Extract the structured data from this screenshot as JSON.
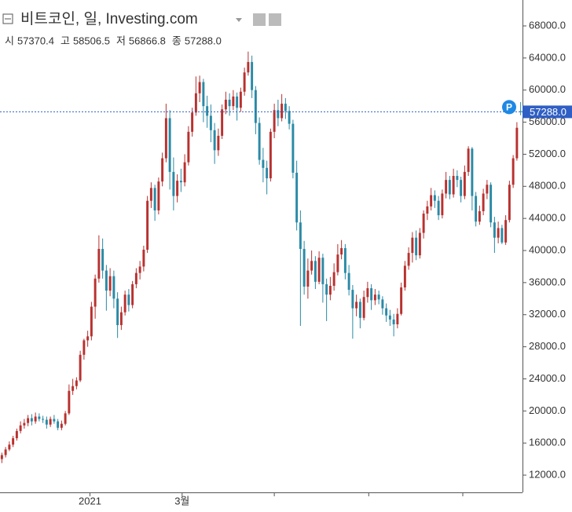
{
  "chart_data": {
    "type": "candlestick",
    "title": "비트코인, 일, Investing.com",
    "ohlc_names": [
      "시",
      "고",
      "저",
      "종"
    ],
    "last_labels": [
      "57370.4",
      "58506.5",
      "56866.8",
      "57288.0"
    ],
    "price_badge": "P",
    "up_color": "#b8312f",
    "down_color": "#2a8aa6",
    "price_line_color": "#2f5fc4",
    "ylim": [
      9850,
      71230
    ],
    "yticks": [
      {
        "value": 12000,
        "label": "12000.0"
      },
      {
        "value": 16000,
        "label": "16000.0"
      },
      {
        "value": 20000,
        "label": "20000.0"
      },
      {
        "value": 24000,
        "label": "24000.0"
      },
      {
        "value": 28000,
        "label": "28000.0"
      },
      {
        "value": 32000,
        "label": "32000.0"
      },
      {
        "value": 36000,
        "label": "36000.0"
      },
      {
        "value": 40000,
        "label": "40000.0"
      },
      {
        "value": 44000,
        "label": "44000.0"
      },
      {
        "value": 48000,
        "label": "48000.0"
      },
      {
        "value": 52000,
        "label": "52000.0"
      },
      {
        "value": 56000,
        "label": "56000.0"
      },
      {
        "value": 60000,
        "label": "60000.0"
      },
      {
        "value": 64000,
        "label": "64000.0"
      },
      {
        "value": 68000,
        "label": "68000.0"
      }
    ],
    "xlim": [
      -0.5,
      139.5
    ],
    "xticks": [
      {
        "value": 23.6,
        "label": "2021"
      },
      {
        "value": 48.3,
        "label": "3월"
      }
    ],
    "xminor_ticks": [
      73,
      98.3,
      123.5
    ],
    "ohlc": [
      [
        14000,
        14800,
        13500,
        14500
      ],
      [
        14500,
        15500,
        14200,
        15200
      ],
      [
        15200,
        16200,
        15000,
        15800
      ],
      [
        15800,
        16900,
        15500,
        16600
      ],
      [
        16600,
        17800,
        16300,
        17500
      ],
      [
        17500,
        18700,
        17200,
        18200
      ],
      [
        18200,
        19000,
        17800,
        18500
      ],
      [
        18500,
        19500,
        18100,
        19100
      ],
      [
        19100,
        19600,
        18200,
        18700
      ],
      [
        18700,
        19800,
        18400,
        19300
      ],
      [
        19300,
        19700,
        18700,
        19000
      ],
      [
        19000,
        19400,
        18500,
        18900
      ],
      [
        18900,
        19300,
        17800,
        18300
      ],
      [
        18300,
        19300,
        18000,
        19000
      ],
      [
        19000,
        19500,
        18400,
        18700
      ],
      [
        18700,
        19000,
        17600,
        17900
      ],
      [
        17900,
        18800,
        17600,
        18400
      ],
      [
        18400,
        20000,
        18200,
        19700
      ],
      [
        19700,
        23300,
        19500,
        22500
      ],
      [
        22500,
        24000,
        22000,
        23100
      ],
      [
        23100,
        24200,
        22700,
        23800
      ],
      [
        23800,
        27500,
        23600,
        27000
      ],
      [
        27000,
        29000,
        26400,
        28800
      ],
      [
        28800,
        30000,
        28000,
        29300
      ],
      [
        29300,
        33600,
        28800,
        33000
      ],
      [
        33000,
        37000,
        31500,
        36500
      ],
      [
        36500,
        41900,
        36000,
        40200
      ],
      [
        40200,
        41500,
        36500,
        37500
      ],
      [
        37500,
        38200,
        32500,
        35000
      ],
      [
        35000,
        37800,
        34300,
        36800
      ],
      [
        36800,
        37500,
        32800,
        34000
      ],
      [
        34000,
        34800,
        29100,
        30700
      ],
      [
        30700,
        33000,
        30100,
        32300
      ],
      [
        32300,
        35000,
        31900,
        34500
      ],
      [
        34500,
        35200,
        32400,
        33200
      ],
      [
        33200,
        36200,
        32800,
        35800
      ],
      [
        35800,
        37800,
        35300,
        37200
      ],
      [
        37200,
        38700,
        36400,
        38000
      ],
      [
        38000,
        40600,
        37400,
        40100
      ],
      [
        40100,
        46800,
        39700,
        46200
      ],
      [
        46200,
        48500,
        45300,
        47800
      ],
      [
        47800,
        48200,
        43700,
        45000
      ],
      [
        45000,
        49100,
        44500,
        48600
      ],
      [
        48600,
        52200,
        48000,
        51500
      ],
      [
        51500,
        58300,
        51000,
        56500
      ],
      [
        56500,
        57500,
        47600,
        49800
      ],
      [
        49800,
        51600,
        45000,
        46800
      ],
      [
        46800,
        49500,
        46000,
        48700
      ],
      [
        48700,
        50200,
        47300,
        48500
      ],
      [
        48500,
        52000,
        48000,
        51000
      ],
      [
        51000,
        55500,
        50600,
        54800
      ],
      [
        54800,
        57800,
        54200,
        57200
      ],
      [
        57200,
        61700,
        56800,
        59600
      ],
      [
        59600,
        61800,
        58500,
        61000
      ],
      [
        61000,
        61400,
        56000,
        58000
      ],
      [
        58000,
        59300,
        55300,
        56800
      ],
      [
        56800,
        58200,
        53500,
        55000
      ],
      [
        55000,
        55900,
        50800,
        52500
      ],
      [
        52500,
        55200,
        51800,
        54300
      ],
      [
        54300,
        58200,
        53900,
        57600
      ],
      [
        57600,
        59800,
        57000,
        58800
      ],
      [
        58800,
        59600,
        56800,
        58000
      ],
      [
        58000,
        60000,
        57500,
        59200
      ],
      [
        59200,
        59700,
        56200,
        57800
      ],
      [
        57800,
        60300,
        57300,
        59800
      ],
      [
        59800,
        62800,
        59300,
        62200
      ],
      [
        62200,
        64800,
        61800,
        63500
      ],
      [
        63500,
        64300,
        59000,
        60000
      ],
      [
        60000,
        60500,
        54500,
        55900
      ],
      [
        55900,
        56600,
        50700,
        51300
      ],
      [
        51300,
        52800,
        48500,
        50300
      ],
      [
        50300,
        51200,
        47000,
        49000
      ],
      [
        49000,
        55200,
        48600,
        54800
      ],
      [
        54800,
        58300,
        54000,
        57500
      ],
      [
        57500,
        58800,
        55500,
        56500
      ],
      [
        56500,
        59500,
        56100,
        58300
      ],
      [
        58300,
        59000,
        56400,
        57400
      ],
      [
        57400,
        58000,
        55100,
        55800
      ],
      [
        55800,
        56300,
        49000,
        49700
      ],
      [
        49700,
        51200,
        42500,
        43500
      ],
      [
        43500,
        45000,
        30600,
        40200
      ],
      [
        40200,
        41200,
        34500,
        35500
      ],
      [
        35500,
        39000,
        34000,
        37500
      ],
      [
        37500,
        40000,
        37000,
        38700
      ],
      [
        38700,
        39300,
        35200,
        36100
      ],
      [
        36100,
        39900,
        35800,
        39100
      ],
      [
        39100,
        39600,
        33500,
        35800
      ],
      [
        35800,
        36500,
        31200,
        34500
      ],
      [
        34500,
        36700,
        33800,
        35600
      ],
      [
        35600,
        38400,
        35000,
        37300
      ],
      [
        37300,
        40800,
        36900,
        39500
      ],
      [
        39500,
        41300,
        38900,
        40300
      ],
      [
        40300,
        40800,
        36400,
        37200
      ],
      [
        37200,
        38200,
        34400,
        35100
      ],
      [
        35100,
        35700,
        29000,
        32800
      ],
      [
        32800,
        34500,
        31800,
        33600
      ],
      [
        33600,
        34000,
        30300,
        31600
      ],
      [
        31600,
        35000,
        31300,
        34200
      ],
      [
        34200,
        36100,
        33500,
        35300
      ],
      [
        35300,
        35800,
        32600,
        33800
      ],
      [
        33800,
        35200,
        33200,
        34500
      ],
      [
        34500,
        35000,
        33300,
        33900
      ],
      [
        33900,
        34300,
        32000,
        32800
      ],
      [
        32800,
        33400,
        31100,
        31900
      ],
      [
        31900,
        32600,
        30600,
        31400
      ],
      [
        31400,
        32100,
        29300,
        30800
      ],
      [
        30800,
        32800,
        30300,
        32100
      ],
      [
        32100,
        36000,
        31900,
        35400
      ],
      [
        35400,
        38700,
        35000,
        38100
      ],
      [
        38100,
        40400,
        37600,
        39700
      ],
      [
        39700,
        42300,
        38500,
        41600
      ],
      [
        41600,
        42500,
        38800,
        39400
      ],
      [
        39400,
        42800,
        39000,
        42200
      ],
      [
        42200,
        45000,
        41500,
        44600
      ],
      [
        44600,
        46200,
        43800,
        45500
      ],
      [
        45500,
        47800,
        45000,
        46900
      ],
      [
        46900,
        47500,
        45300,
        46200
      ],
      [
        46200,
        46800,
        43800,
        44400
      ],
      [
        44400,
        47600,
        44000,
        47100
      ],
      [
        47100,
        49800,
        46500,
        48800
      ],
      [
        48800,
        49300,
        46400,
        47000
      ],
      [
        47000,
        50200,
        46600,
        49300
      ],
      [
        49300,
        50000,
        47900,
        48800
      ],
      [
        48800,
        49200,
        46000,
        46800
      ],
      [
        46800,
        50600,
        46400,
        49800
      ],
      [
        49800,
        53000,
        49300,
        52700
      ],
      [
        52700,
        52900,
        45000,
        46800
      ],
      [
        46800,
        47300,
        43000,
        43600
      ],
      [
        43600,
        45600,
        43200,
        44900
      ],
      [
        44900,
        47700,
        44400,
        47100
      ],
      [
        47100,
        48800,
        46400,
        48200
      ],
      [
        48200,
        48500,
        42900,
        43500
      ],
      [
        43500,
        44200,
        39700,
        41600
      ],
      [
        41600,
        43600,
        40900,
        42800
      ],
      [
        42800,
        43200,
        40800,
        41000
      ],
      [
        41000,
        44400,
        40700,
        43800
      ],
      [
        43800,
        48700,
        43500,
        48200
      ],
      [
        48200,
        51900,
        47800,
        51500
      ],
      [
        51500,
        56000,
        51200,
        55300
      ],
      [
        57370.4,
        58506.5,
        56866.8,
        57288.0
      ]
    ]
  }
}
